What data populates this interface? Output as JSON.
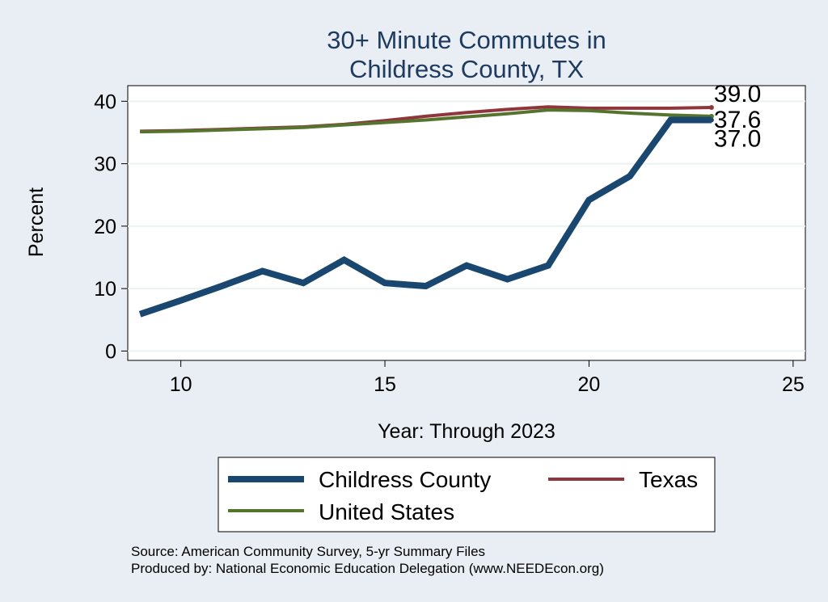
{
  "chart_data": {
    "type": "line",
    "title_lines": [
      "30+ Minute Commutes in",
      "Childress County, TX"
    ],
    "xlabel": "Year: Through 2023",
    "ylabel": "Percent",
    "xlim": [
      8.7,
      25.3
    ],
    "ylim": [
      -1.5,
      42.5
    ],
    "xticks": [
      10,
      15,
      20,
      25
    ],
    "yticks": [
      0,
      10,
      20,
      30,
      40
    ],
    "grid": "horizontal",
    "series": [
      {
        "name": "Childress County",
        "color": "#1a476f",
        "x": [
          9,
          10,
          11,
          12,
          13,
          14,
          15,
          16,
          17,
          18,
          19,
          20,
          21,
          22,
          23
        ],
        "values": [
          5.9,
          8.1,
          10.4,
          12.8,
          10.9,
          14.6,
          10.9,
          10.4,
          13.7,
          11.5,
          13.7,
          24.2,
          28.0,
          37.0,
          37.0
        ],
        "end_label": "37.0"
      },
      {
        "name": "Texas",
        "color": "#90353b",
        "x": [
          9,
          10,
          11,
          12,
          13,
          14,
          15,
          16,
          17,
          18,
          19,
          20,
          21,
          22,
          23
        ],
        "values": [
          35.2,
          35.3,
          35.5,
          35.7,
          35.9,
          36.3,
          36.9,
          37.6,
          38.2,
          38.7,
          39.1,
          38.9,
          38.9,
          38.9,
          39.0
        ],
        "end_label": "39.0"
      },
      {
        "name": "United States",
        "color": "#55752f",
        "x": [
          9,
          10,
          11,
          12,
          13,
          14,
          15,
          16,
          17,
          18,
          19,
          20,
          21,
          22,
          23
        ],
        "values": [
          35.1,
          35.2,
          35.4,
          35.6,
          35.8,
          36.2,
          36.6,
          37.0,
          37.5,
          38.0,
          38.6,
          38.5,
          38.1,
          37.8,
          37.6
        ],
        "end_label": "37.6"
      }
    ],
    "legend_position": "bottom"
  },
  "source_text": "Source: American Community Survey, 5-yr Summary Files",
  "produced_text": "Produced by: National Economic Education Delegation (www.NEEDEcon.org)"
}
